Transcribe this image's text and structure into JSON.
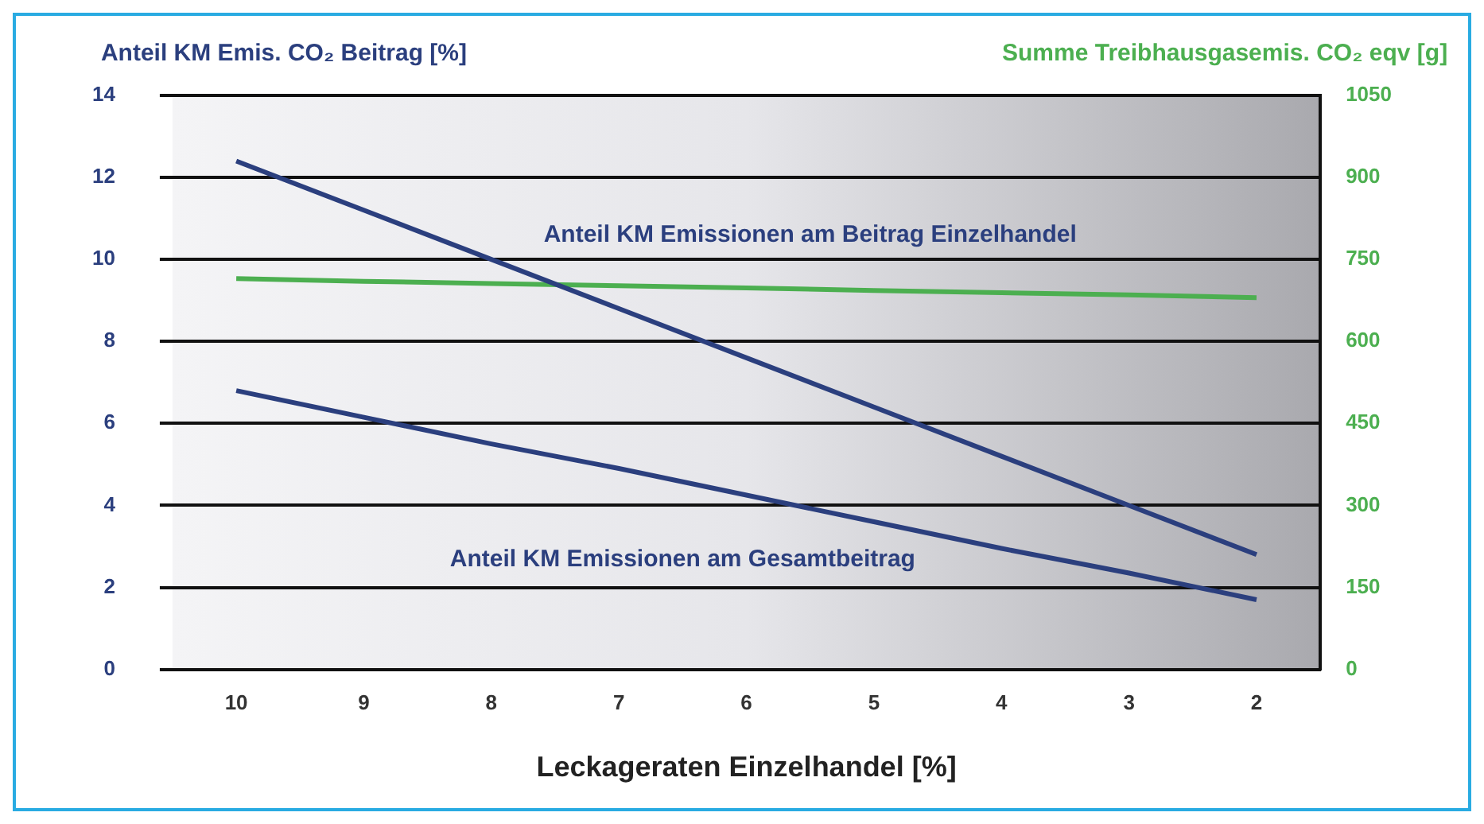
{
  "chart_data": {
    "type": "line",
    "ylabel": "Anteil KM Emis. CO₂ Beitrag [%]",
    "y2label": "Summe Treibhausgasemis. CO₂ eqv [g]",
    "xlabel": "Leckageraten Einzelhandel [%]",
    "categories": [
      "10",
      "9",
      "8",
      "7",
      "6",
      "5",
      "4",
      "3",
      "2"
    ],
    "series": [
      {
        "name": "Anteil KM Emissionen am Beitrag Einzelhandel",
        "color": "#2b3f7e",
        "values": [
          12.4,
          11.2,
          10.0,
          8.8,
          7.6,
          6.4,
          5.2,
          4.0,
          2.8
        ]
      },
      {
        "name": "Anteil KM Emissionen am Gesamtbeitrag",
        "color": "#2b3f7e",
        "values": [
          6.8,
          6.15,
          5.5,
          4.9,
          4.25,
          3.6,
          2.95,
          2.35,
          1.7
        ]
      },
      {
        "color": "#4caf50",
        "axis": "y2",
        "values": [
          715,
          710,
          706,
          702,
          698,
          693,
          689,
          685,
          680
        ]
      }
    ],
    "ylim": [
      0,
      14
    ],
    "yticks": [
      0,
      2,
      4,
      6,
      8,
      10,
      12,
      14
    ],
    "y2lim": [
      0,
      1050
    ],
    "y2ticks": [
      0,
      150,
      300,
      450,
      600,
      750,
      900,
      1050
    ],
    "grid": "y",
    "legend": false,
    "marker": "none",
    "line_style": "solid"
  }
}
